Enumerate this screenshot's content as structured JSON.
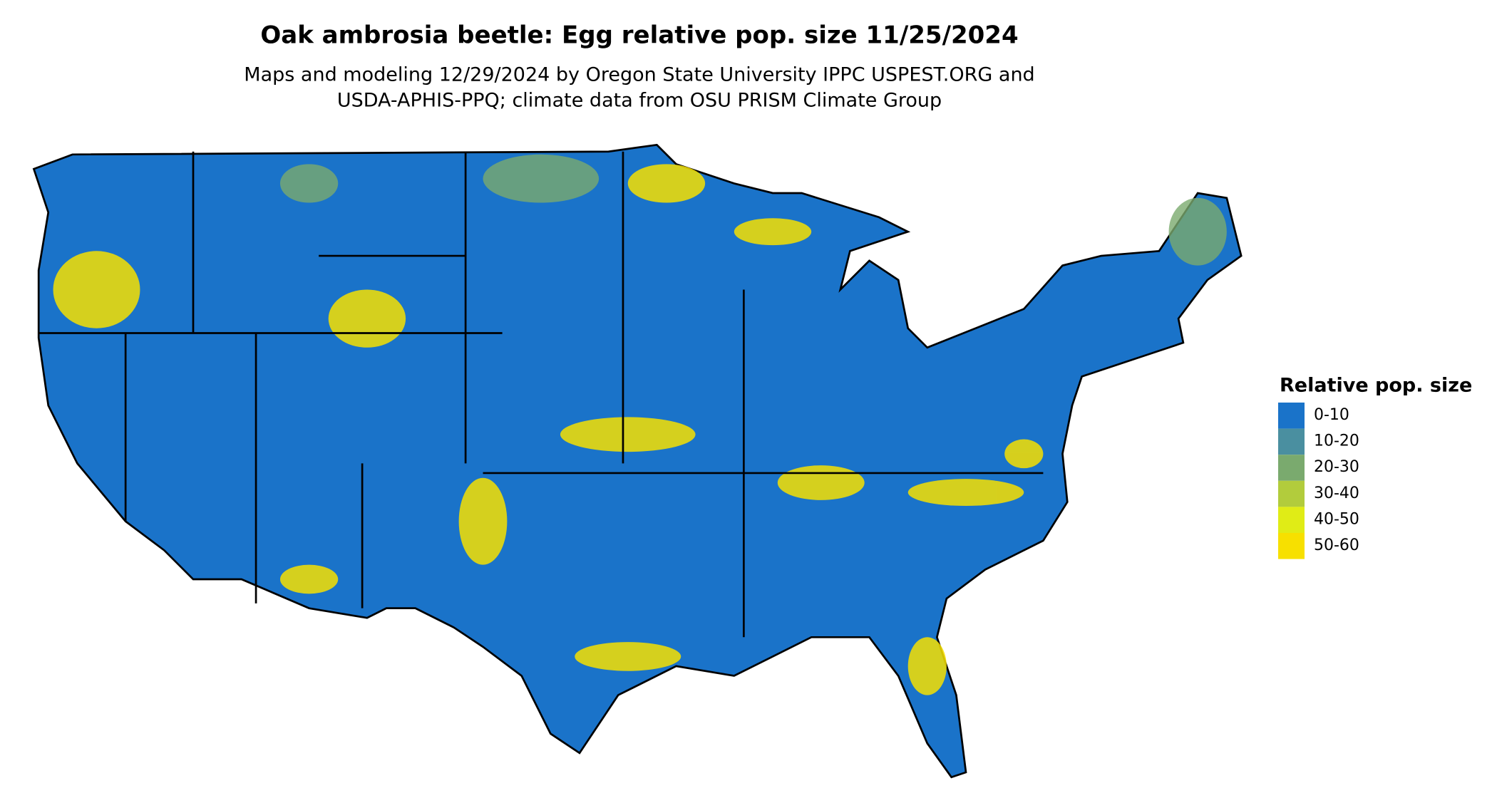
{
  "header": {
    "title": "Oak ambrosia beetle: Egg relative pop. size 11/25/2024",
    "subtitle_lines": [
      "Maps and modeling 12/29/2024 by Oregon State University IPPC USPEST.ORG and",
      "USDA-APHIS-PPQ; climate data from OSU PRISM Climate Group"
    ]
  },
  "legend": {
    "title": "Relative pop. size",
    "items": [
      {
        "label": "0-10",
        "color": "#1a73c9"
      },
      {
        "label": "10-20",
        "color": "#4a8fa0"
      },
      {
        "label": "20-30",
        "color": "#7aaa6e"
      },
      {
        "label": "30-40",
        "color": "#b2cc3c"
      },
      {
        "label": "40-50",
        "color": "#e0ec16"
      },
      {
        "label": "50-60",
        "color": "#f7e000"
      }
    ]
  }
}
